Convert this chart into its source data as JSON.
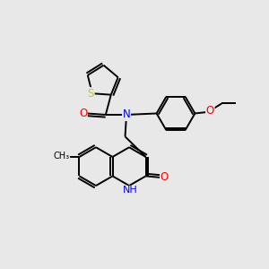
{
  "background_color": "#e8e8e8",
  "bond_color": "#000000",
  "atom_colors": {
    "S": "#cccc00",
    "N": "#0000ff",
    "O": "#ff0000",
    "C": "#000000"
  },
  "font_size": 8.5,
  "linewidth": 1.4,
  "xlim": [
    0,
    10
  ],
  "ylim": [
    0,
    10
  ]
}
